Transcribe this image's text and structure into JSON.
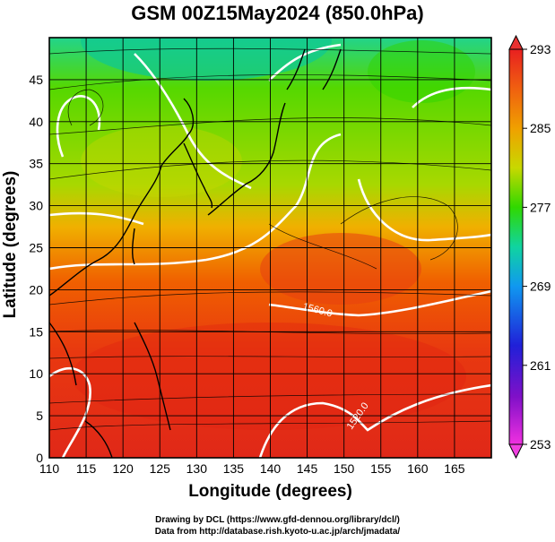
{
  "title": "GSM 00Z15May2024 (850.0hPa)",
  "axes": {
    "xlabel": "Longitude (degrees)",
    "ylabel": "Latitude  (degrees)",
    "xlim": [
      110,
      170
    ],
    "ylim": [
      0,
      50
    ],
    "xticks": [
      "110",
      "115",
      "120",
      "125",
      "130",
      "135",
      "140",
      "145",
      "150",
      "155",
      "160",
      "165"
    ],
    "yticks": [
      "0",
      "5",
      "10",
      "15",
      "20",
      "25",
      "30",
      "35",
      "40",
      "45"
    ]
  },
  "colorbar": {
    "range": [
      253,
      293
    ],
    "ticks": [
      "293",
      "285",
      "277",
      "269",
      "261",
      "253"
    ]
  },
  "contour_labels": [
    "1560.0",
    "1520.0"
  ],
  "credits": {
    "line1": "Drawing by DCL (https://www.gfd-dennou.org/library/dcl/)",
    "line2": "Data from http://database.rish.kyoto-u.ac.jp/arch/jmadata/"
  },
  "colors": {
    "warm": "#e83a10",
    "mid": "#f0a000",
    "cool": "#44d400",
    "cold": "#10c8a0",
    "contour": "#ffffff"
  }
}
